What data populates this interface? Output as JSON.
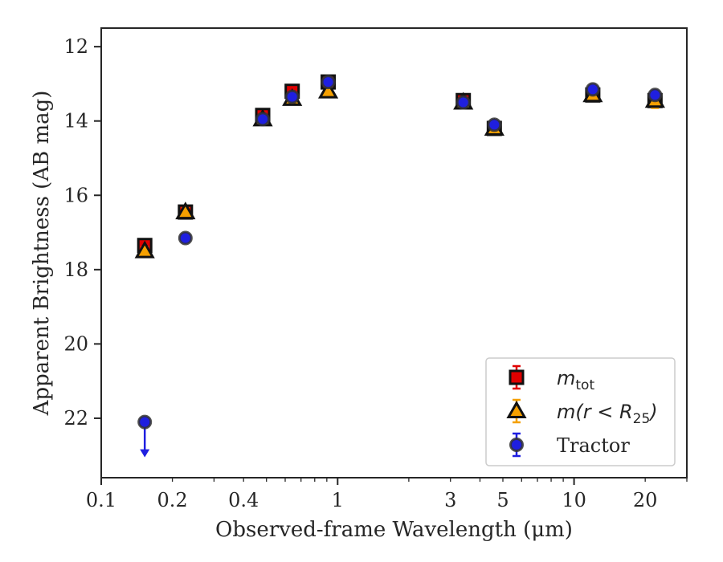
{
  "chart_data": {
    "type": "scatter",
    "xlabel": "Observed-frame Wavelength (μm)",
    "ylabel": "Apparent Brightness (AB mag)",
    "xscale": "log",
    "xlim": [
      0.1,
      30
    ],
    "ylim": [
      23.6,
      11.5
    ],
    "y_inverted": true,
    "x_ticks": [
      {
        "value": 0.1,
        "label": "0.1"
      },
      {
        "value": 0.2,
        "label": "0.2"
      },
      {
        "value": 0.4,
        "label": "0.4"
      },
      {
        "value": 1,
        "label": "1"
      },
      {
        "value": 3,
        "label": "3"
      },
      {
        "value": 5,
        "label": "5"
      },
      {
        "value": 10,
        "label": "10"
      },
      {
        "value": 20,
        "label": "20"
      }
    ],
    "y_ticks": [
      {
        "value": 12,
        "label": "12"
      },
      {
        "value": 14,
        "label": "14"
      },
      {
        "value": 16,
        "label": "16"
      },
      {
        "value": 18,
        "label": "18"
      },
      {
        "value": 20,
        "label": "20"
      },
      {
        "value": 22,
        "label": "22"
      }
    ],
    "grid": false,
    "legend_position": "lower-right",
    "series": [
      {
        "name": "m_tot",
        "marker": "square",
        "color": "#e00000",
        "points": [
          {
            "x": 0.1528,
            "y": 17.35,
            "yerr": 0.1
          },
          {
            "x": 0.2271,
            "y": 16.45,
            "yerr": 0.1
          },
          {
            "x": 0.482,
            "y": 13.85,
            "yerr": 0.1
          },
          {
            "x": 0.6423,
            "y": 13.2,
            "yerr": 0.1
          },
          {
            "x": 0.9122,
            "y": 12.95,
            "yerr": 0.1
          },
          {
            "x": 3.4,
            "y": 13.45,
            "yerr": 0.1
          },
          {
            "x": 4.6,
            "y": 14.2,
            "yerr": 0.1
          },
          {
            "x": 12.0,
            "y": 13.3,
            "yerr": 0.1
          },
          {
            "x": 22.0,
            "y": 13.45,
            "yerr": 0.1
          }
        ]
      },
      {
        "name": "m(r < R25)",
        "marker": "triangle",
        "color": "#f5a000",
        "points": [
          {
            "x": 0.1528,
            "y": 17.5,
            "yerr": 0.1
          },
          {
            "x": 0.2271,
            "y": 16.45,
            "yerr": 0.1
          },
          {
            "x": 0.482,
            "y": 13.95,
            "yerr": 0.1
          },
          {
            "x": 0.6423,
            "y": 13.4,
            "yerr": 0.1
          },
          {
            "x": 0.9122,
            "y": 13.2,
            "yerr": 0.1
          },
          {
            "x": 3.4,
            "y": 13.5,
            "yerr": 0.1
          },
          {
            "x": 4.6,
            "y": 14.2,
            "yerr": 0.1
          },
          {
            "x": 12.0,
            "y": 13.3,
            "yerr": 0.1
          },
          {
            "x": 22.0,
            "y": 13.45,
            "yerr": 0.2
          }
        ]
      },
      {
        "name": "Tractor",
        "marker": "circle",
        "color": "#1f1fe0",
        "points": [
          {
            "x": 0.1528,
            "y": 22.1,
            "yerr": 0,
            "upper_limit": true
          },
          {
            "x": 0.2271,
            "y": 17.15,
            "yerr": 0.05
          },
          {
            "x": 0.482,
            "y": 13.95,
            "yerr": 0.05
          },
          {
            "x": 0.6423,
            "y": 13.35,
            "yerr": 0.05
          },
          {
            "x": 0.9122,
            "y": 12.95,
            "yerr": 0.05
          },
          {
            "x": 3.4,
            "y": 13.5,
            "yerr": 0.05
          },
          {
            "x": 4.6,
            "y": 14.1,
            "yerr": 0.05
          },
          {
            "x": 12.0,
            "y": 13.15,
            "yerr": 0.05
          },
          {
            "x": 22.0,
            "y": 13.3,
            "yerr": 0.05
          }
        ]
      }
    ]
  },
  "legend": {
    "items": [
      {
        "key": "m_tot",
        "main": "m",
        "sub": "tot",
        "rest": "",
        "sub2": "",
        "tail": ""
      },
      {
        "key": "m(r < R25)",
        "main": "m(r < R",
        "sub": "25",
        "rest": ")",
        "sub2": "",
        "tail": ""
      },
      {
        "key": "Tractor",
        "main": "Tractor",
        "sub": "",
        "rest": "",
        "sub2": "",
        "tail": ""
      }
    ]
  }
}
